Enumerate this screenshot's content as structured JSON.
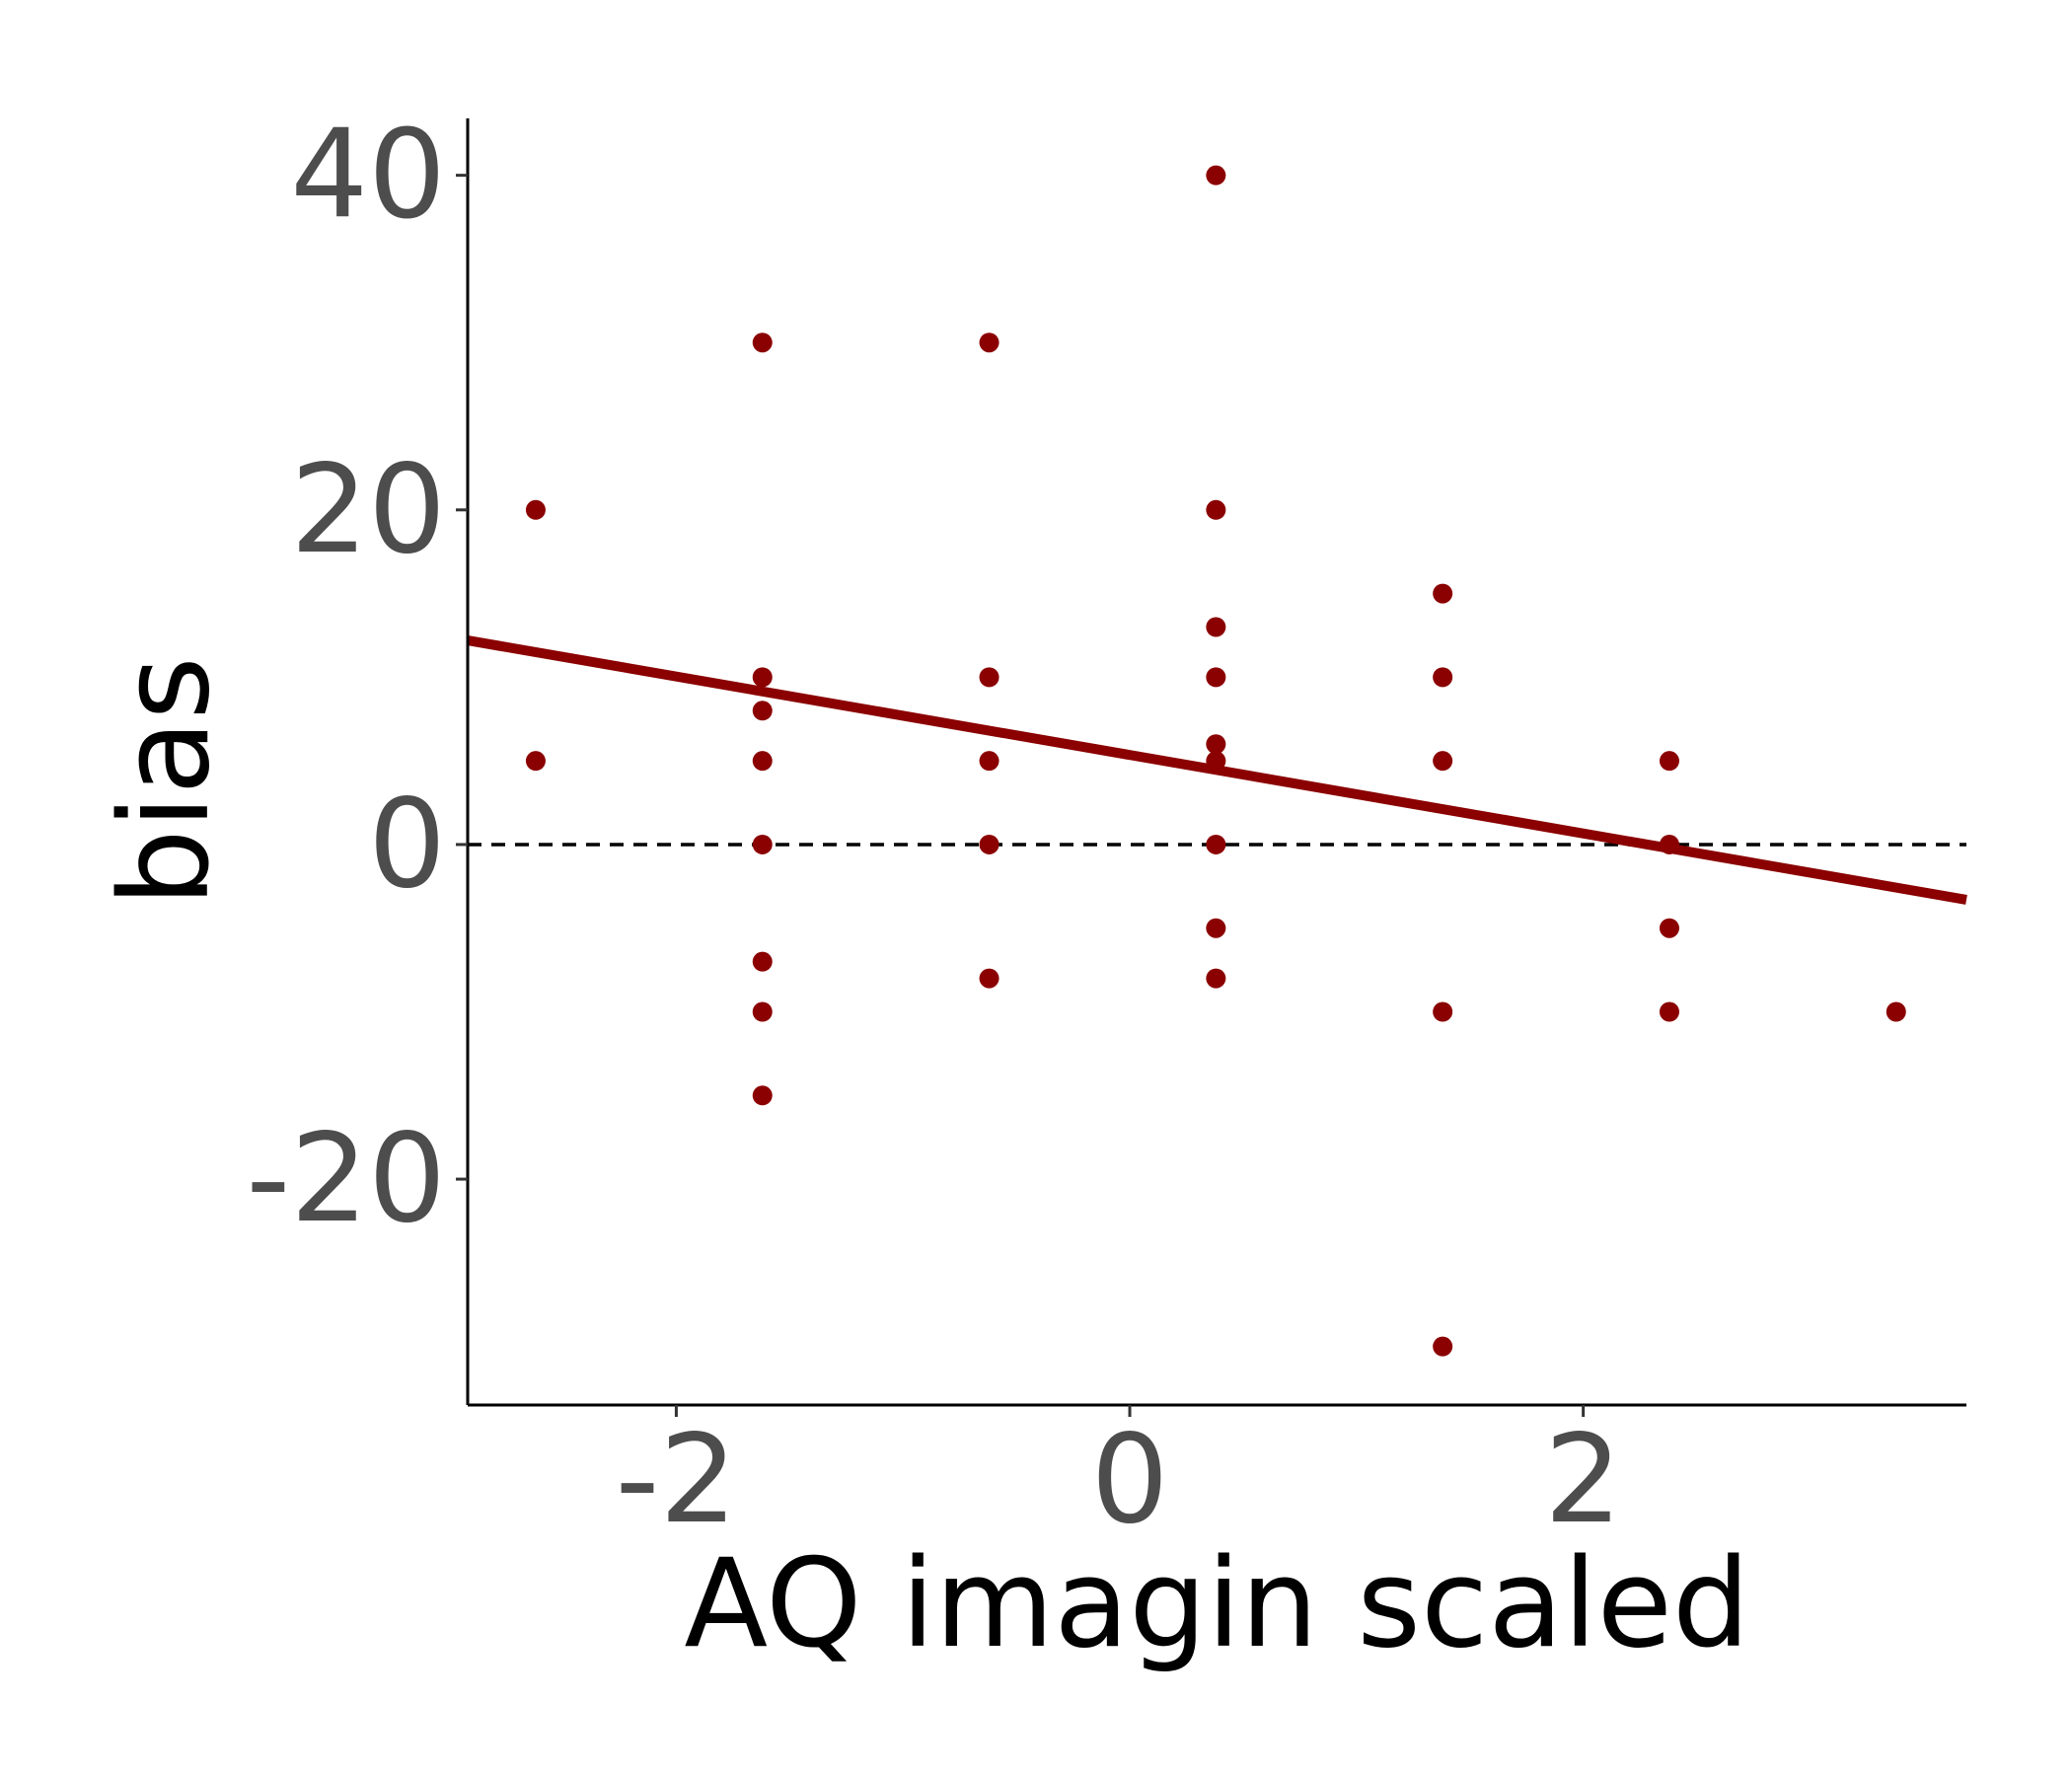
{
  "chart_data": {
    "type": "scatter",
    "title": "",
    "xlabel": "AQ imagin scaled",
    "ylabel": "bias",
    "xlim": [
      -2.92,
      3.69
    ],
    "ylim": [
      -33.5,
      43.4
    ],
    "x_ticks": [
      -2,
      0,
      2
    ],
    "x_tick_labels": [
      "-2",
      "0",
      "2"
    ],
    "y_ticks": [
      -20,
      0,
      20,
      40
    ],
    "y_tick_labels": [
      "-20",
      "0",
      "20",
      "40"
    ],
    "grid": false,
    "legend": "none",
    "point_color": "#8b0000",
    "line_color": "#8b0000",
    "reference_line": {
      "y": 0,
      "style": "dashed",
      "color": "#000000"
    },
    "points": [
      {
        "x": -2.62,
        "y": 20
      },
      {
        "x": -2.62,
        "y": 5
      },
      {
        "x": -1.62,
        "y": 30
      },
      {
        "x": -1.62,
        "y": 10
      },
      {
        "x": -1.62,
        "y": 8
      },
      {
        "x": -1.62,
        "y": 5
      },
      {
        "x": -1.62,
        "y": 0
      },
      {
        "x": -1.62,
        "y": -7
      },
      {
        "x": -1.62,
        "y": -10
      },
      {
        "x": -1.62,
        "y": -15
      },
      {
        "x": -0.62,
        "y": 30
      },
      {
        "x": -0.62,
        "y": 10
      },
      {
        "x": -0.62,
        "y": 5
      },
      {
        "x": -0.62,
        "y": 0
      },
      {
        "x": -0.62,
        "y": -8
      },
      {
        "x": 0.38,
        "y": 40
      },
      {
        "x": 0.38,
        "y": 20
      },
      {
        "x": 0.38,
        "y": 13
      },
      {
        "x": 0.38,
        "y": 10
      },
      {
        "x": 0.38,
        "y": 6
      },
      {
        "x": 0.38,
        "y": 5
      },
      {
        "x": 0.38,
        "y": 0
      },
      {
        "x": 0.38,
        "y": -5
      },
      {
        "x": 0.38,
        "y": -8
      },
      {
        "x": 1.38,
        "y": 15
      },
      {
        "x": 1.38,
        "y": 10
      },
      {
        "x": 1.38,
        "y": 5
      },
      {
        "x": 1.38,
        "y": -10
      },
      {
        "x": 1.38,
        "y": -30
      },
      {
        "x": 2.38,
        "y": 5
      },
      {
        "x": 2.38,
        "y": 0
      },
      {
        "x": 2.38,
        "y": -5
      },
      {
        "x": 2.38,
        "y": -10
      },
      {
        "x": 3.38,
        "y": -10
      }
    ],
    "fit_line": {
      "x": [
        -2.92,
        3.69
      ],
      "y": [
        12.2,
        -3.3
      ]
    }
  }
}
